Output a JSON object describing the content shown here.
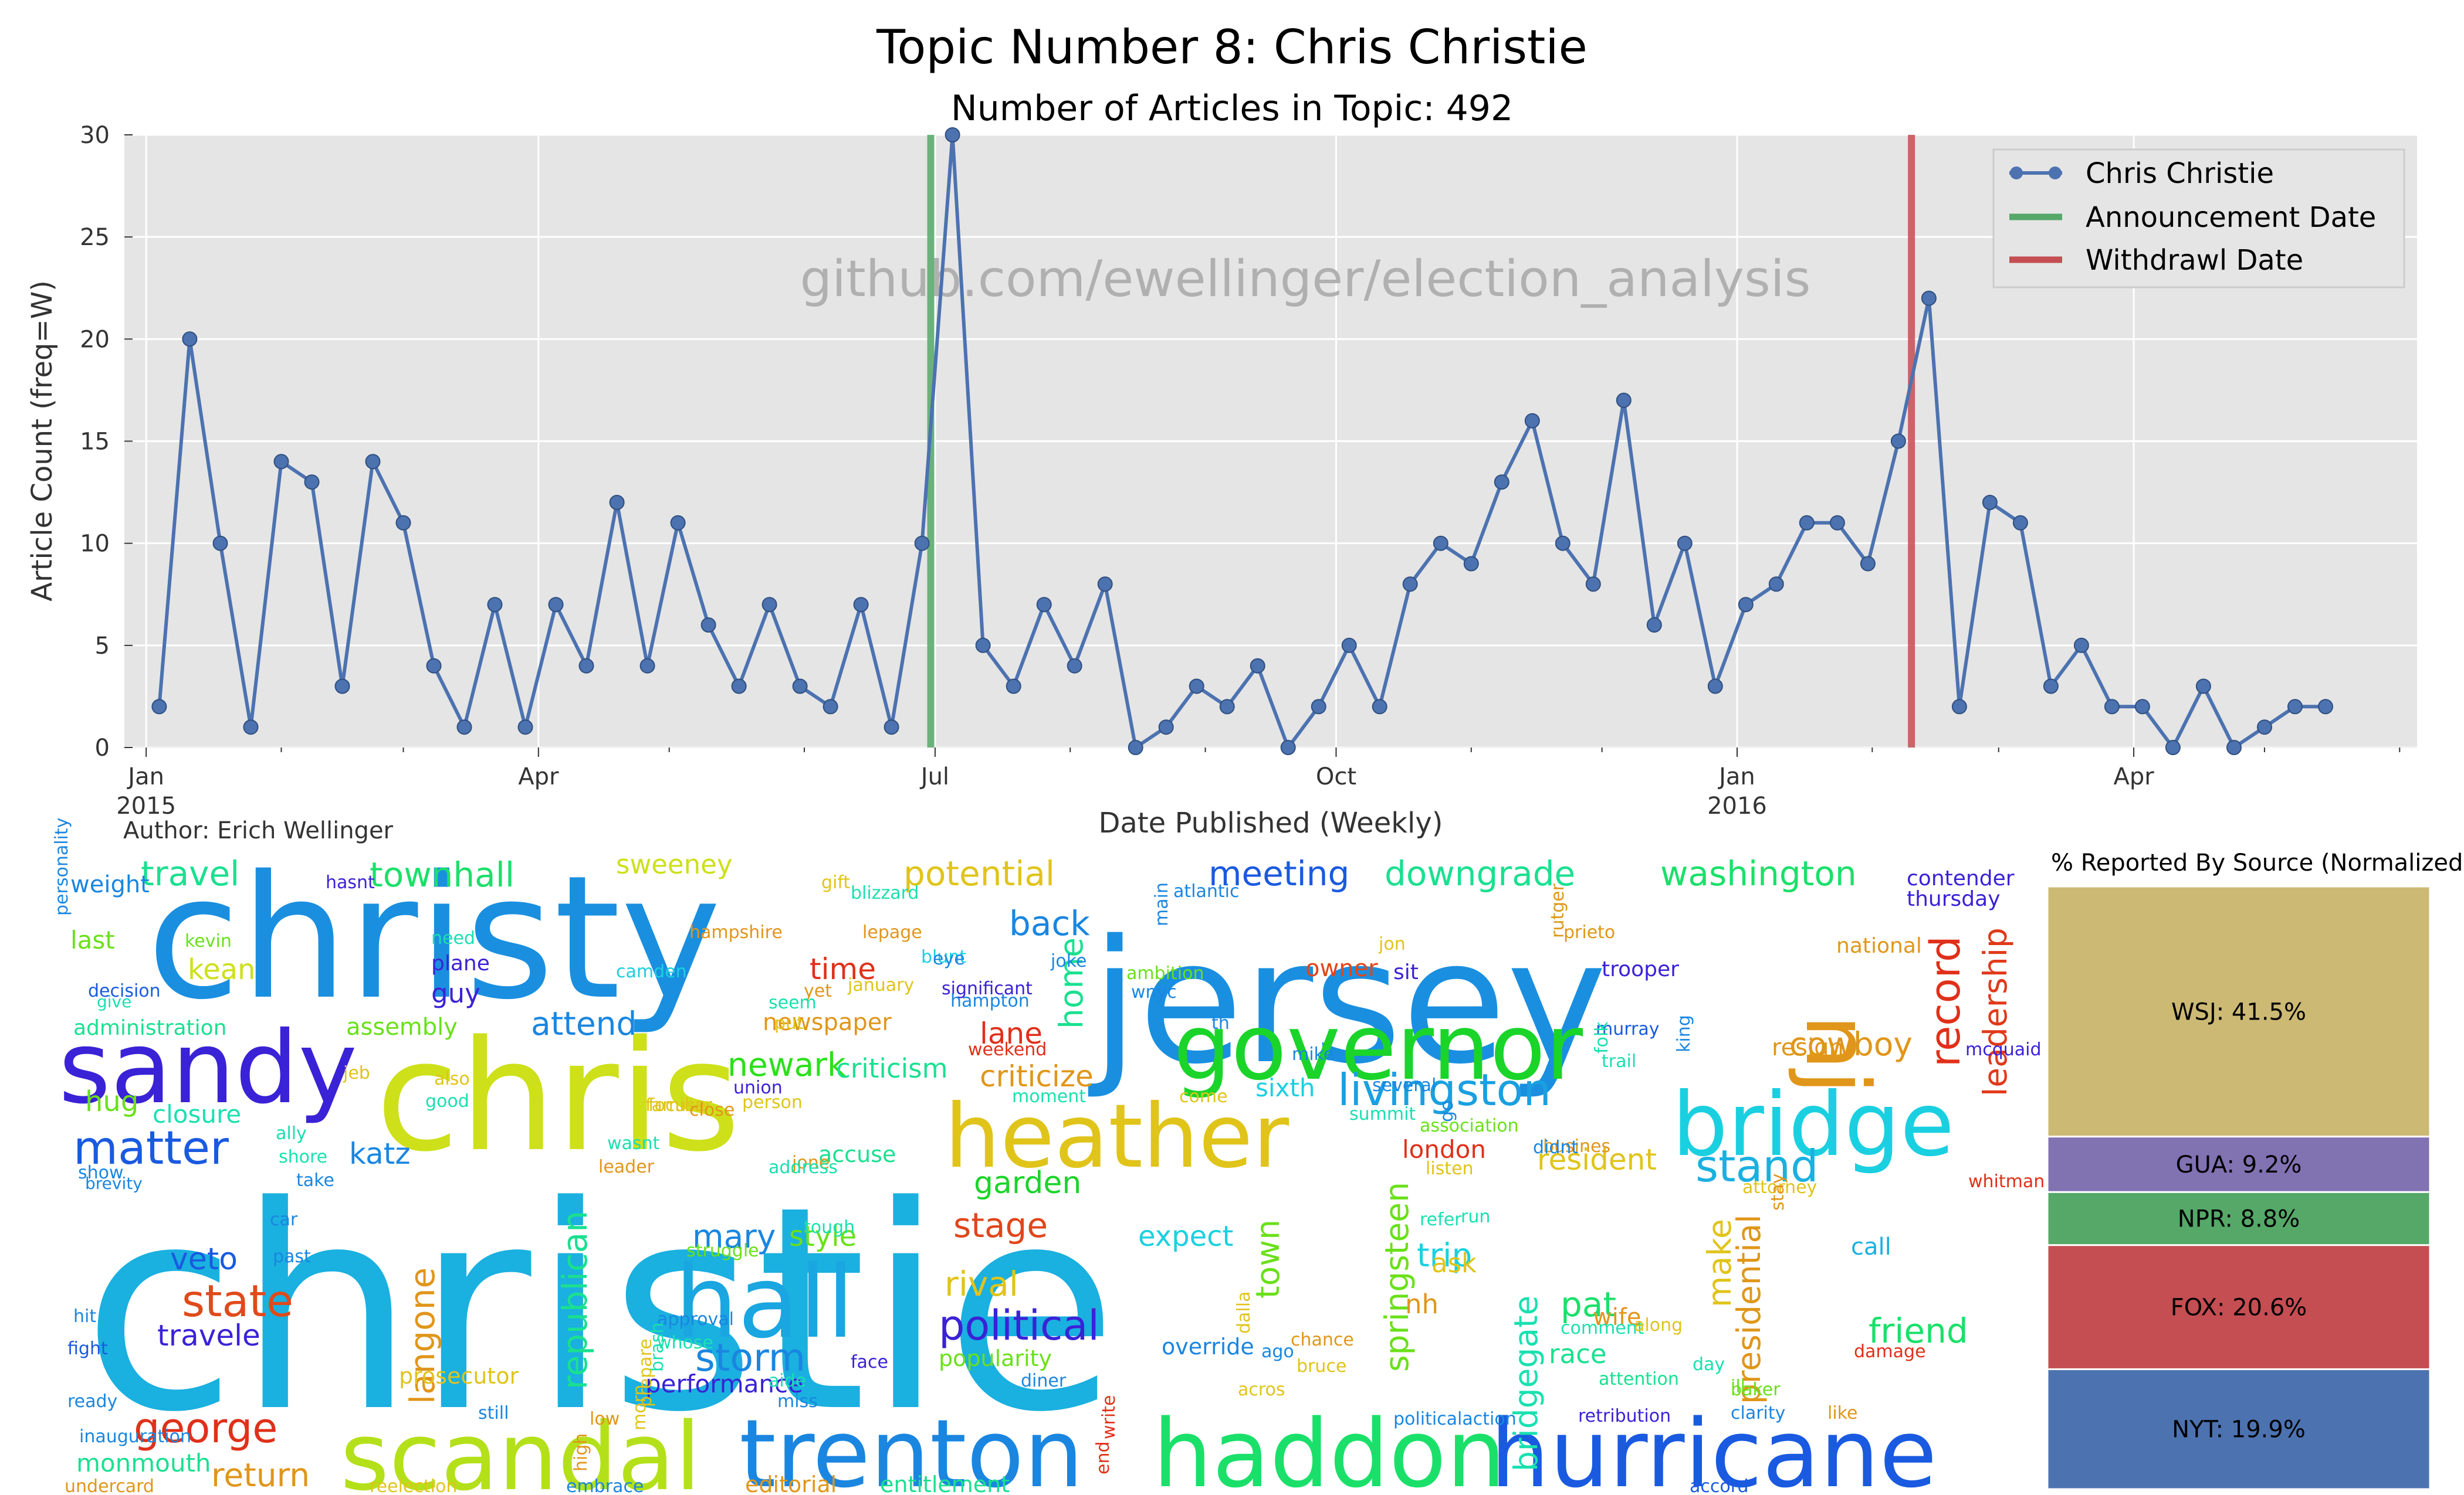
{
  "figure": {
    "title": "Topic Number 8: Chris Christie",
    "subtitle": "Number of Articles in Topic: 492",
    "author": "Author: Erich Wellinger",
    "watermark": "github.com/ewellinger/election_analysis"
  },
  "chart_data": [
    {
      "type": "line",
      "title": "Topic Number 8: Chris Christie",
      "subtitle": "Number of Articles in Topic: 492",
      "xlabel": "Date Published (Weekly)",
      "ylabel": "Article Count (freq=W)",
      "ylim": [
        0,
        30
      ],
      "yticks": [
        0,
        5,
        10,
        15,
        20,
        25,
        30
      ],
      "xlim": [
        "2014-12-27",
        "2016-06-05"
      ],
      "xticks": [
        {
          "date": "2015-01-01",
          "label": "Jan",
          "label2": "2015"
        },
        {
          "date": "2015-04-01",
          "label": "Apr",
          "label2": ""
        },
        {
          "date": "2015-07-01",
          "label": "Jul",
          "label2": ""
        },
        {
          "date": "2015-10-01",
          "label": "Oct",
          "label2": ""
        },
        {
          "date": "2016-01-01",
          "label": "Jan",
          "label2": "2016"
        },
        {
          "date": "2016-04-01",
          "label": "Apr",
          "label2": ""
        }
      ],
      "grid": true,
      "legend_position": "top-right",
      "series": [
        {
          "name": "Chris Christie",
          "color": "#4c72b0",
          "start": "2015-01-04",
          "interval_days": 7,
          "values": [
            2,
            20,
            10,
            1,
            14,
            13,
            3,
            14,
            11,
            4,
            1,
            7,
            1,
            7,
            4,
            12,
            4,
            11,
            6,
            3,
            7,
            3,
            2,
            7,
            1,
            10,
            30,
            5,
            3,
            7,
            4,
            8,
            0,
            1,
            3,
            2,
            4,
            0,
            2,
            5,
            2,
            8,
            10,
            9,
            13,
            16,
            10,
            8,
            17,
            6,
            10,
            3,
            7,
            8,
            11,
            11,
            9,
            15,
            22,
            2,
            12,
            11,
            3,
            5,
            2,
            2,
            0,
            3,
            0,
            1,
            2,
            2
          ]
        }
      ],
      "vlines": [
        {
          "name": "Announcement Date",
          "date": "2015-06-30",
          "color": "#55a868"
        },
        {
          "name": "Withdrawl Date",
          "date": "2016-02-10",
          "color": "#c44e52"
        }
      ]
    },
    {
      "type": "bar",
      "title": "% Reported By Source (Normalized)",
      "stacked": true,
      "segments": [
        {
          "label": "NYT: 19.9%",
          "source": "NYT",
          "value": 19.9,
          "color": "#4c72b0"
        },
        {
          "label": "FOX: 20.6%",
          "source": "FOX",
          "value": 20.6,
          "color": "#c44e52"
        },
        {
          "label": "NPR: 8.8%",
          "source": "NPR",
          "value": 8.8,
          "color": "#55a868"
        },
        {
          "label": "GUA: 9.2%",
          "source": "GUA",
          "value": 9.2,
          "color": "#8172b2"
        },
        {
          "label": "WSJ: 41.5%",
          "source": "WSJ",
          "value": 41.5,
          "color": "#ccb974"
        }
      ]
    }
  ],
  "wordcloud": {
    "words": [
      "christie",
      "christy",
      "jersey",
      "chris",
      "sandy",
      "governor",
      "heather",
      "bridge",
      "scandal",
      "trenton",
      "haddon",
      "hurricane",
      "hall",
      "nj",
      "record",
      "leadership",
      "livingston",
      "cowboy",
      "matter",
      "state",
      "george",
      "stand",
      "political",
      "storm",
      "travel",
      "townhall",
      "potential",
      "meeting",
      "downgrade",
      "washington",
      "back",
      "time",
      "attend",
      "home",
      "criticize",
      "lane",
      "newark",
      "garden",
      "stage",
      "rival",
      "town",
      "make",
      "trip",
      "expect",
      "pat",
      "friend",
      "presidential",
      "bridgegate",
      "springsteen",
      "langone",
      "republican",
      "mary",
      "style",
      "sweeney",
      "kean",
      "guy",
      "assembly",
      "administration",
      "closure",
      "hug",
      "veto",
      "travele",
      "return",
      "monmouth",
      "performance",
      "override",
      "entitlement",
      "editorial",
      "resident",
      "london",
      "sixth",
      "nh",
      "ask",
      "race",
      "wife",
      "call",
      "owner",
      "sit",
      "trooper",
      "contender",
      "thursday",
      "national",
      "resign",
      "katz",
      "criticism",
      "newspaper",
      "accuse",
      "popularity",
      "prosecutor",
      "weight",
      "personality",
      "last",
      "decision",
      "give",
      "hasnt",
      "kevin",
      "need",
      "plane",
      "camden",
      "hampshire",
      "gift",
      "blizzard",
      "blunt",
      "significant",
      "hampton",
      "ambition",
      "atlantic",
      "rutger",
      "prieto",
      "murray",
      "folk",
      "mcquaid",
      "whitman",
      "damage",
      "like",
      "accord",
      "retribution",
      "attention",
      "politicalaction",
      "acros",
      "bruce",
      "chance",
      "diner",
      "face",
      "miss",
      "aide",
      "still",
      "reelection",
      "embrace",
      "undercard",
      "inauguration",
      "ready",
      "fight",
      "hit",
      "show",
      "brevity",
      "car",
      "past",
      "ally",
      "shore",
      "take",
      "jeb",
      "also",
      "good",
      "wasnt",
      "leader",
      "focuse",
      "familiar",
      "close",
      "union",
      "person",
      "weekend",
      "moment",
      "come",
      "summit",
      "association",
      "busines",
      "listen",
      "refer",
      "run",
      "comment",
      "along",
      "day",
      "ill",
      "baker",
      "attorney",
      "clarity",
      "trail",
      "king",
      "jon",
      "lepage",
      "yet",
      "seem",
      "put",
      "jone",
      "address",
      "tough",
      "struggle",
      "approval",
      "whose",
      "brash",
      "prepare",
      "morn",
      "high",
      "low",
      "write",
      "end",
      "dalla",
      "main",
      "eye",
      "january",
      "stay",
      "ago",
      "joke",
      "wnyc",
      "th",
      "mike",
      "several",
      "go",
      "didnt"
    ]
  }
}
